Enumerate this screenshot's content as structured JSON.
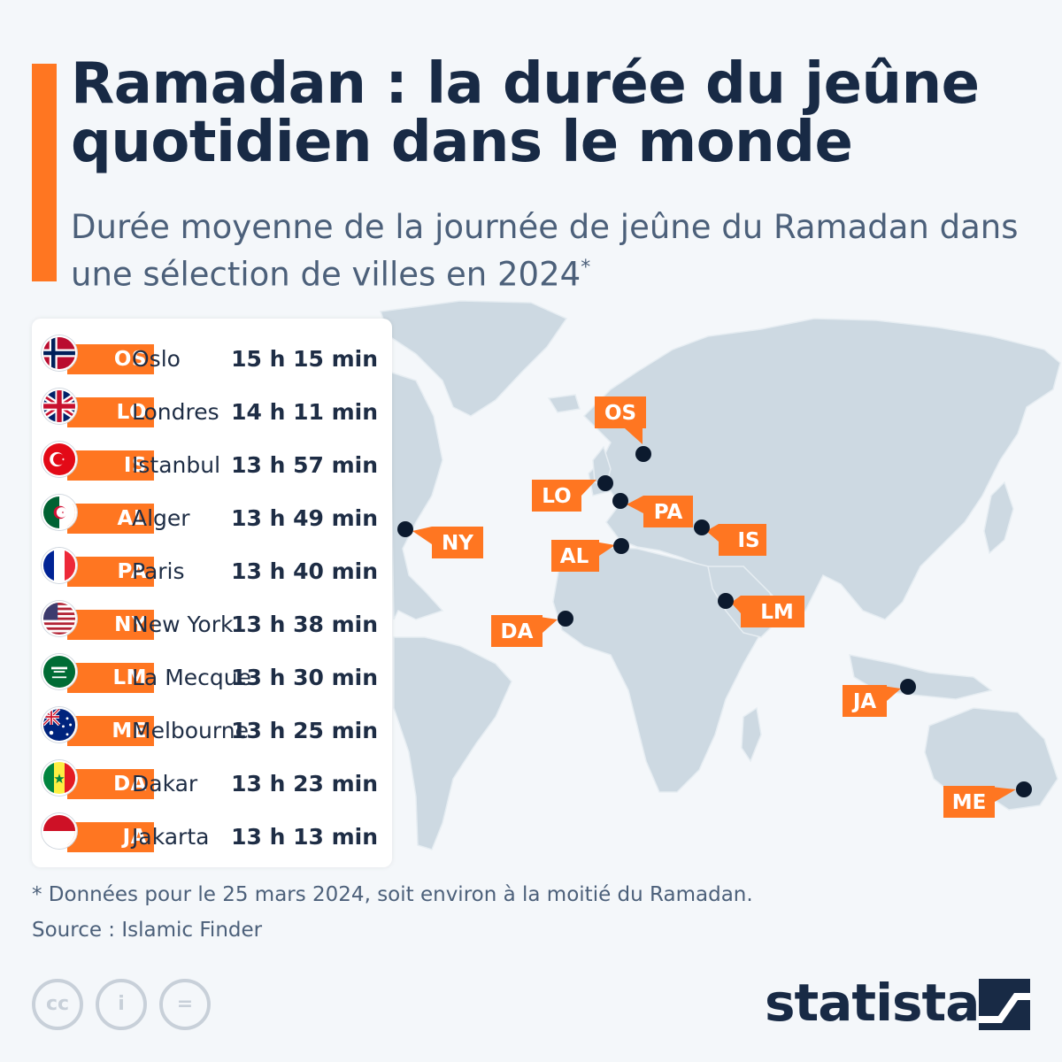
{
  "title": "Ramadan : la durée du jeûne quotidien dans le monde",
  "subtitle": "Durée moyenne de la journée de jeûne du Ramadan dans une sélection de villes en 2024",
  "subtitle_mark": "*",
  "colors": {
    "accent": "#ff7621",
    "title": "#182a45",
    "land": "#cdd9e2",
    "marker": "#0c1a2e",
    "background": "#f4f7fa"
  },
  "rows": [
    {
      "code": "OS",
      "city": "Oslo",
      "duration": "15 h 15 min",
      "flag": "norway-flag-icon"
    },
    {
      "code": "LO",
      "city": "Londres",
      "duration": "14 h 11 min",
      "flag": "uk-flag-icon"
    },
    {
      "code": "IS",
      "city": "Istanbul",
      "duration": "13 h 57 min",
      "flag": "turkey-flag-icon"
    },
    {
      "code": "AL",
      "city": "Alger",
      "duration": "13 h 49 min",
      "flag": "algeria-flag-icon"
    },
    {
      "code": "PA",
      "city": "Paris",
      "duration": "13 h 40 min",
      "flag": "france-flag-icon"
    },
    {
      "code": "NY",
      "city": "New York",
      "duration": "13 h 38 min",
      "flag": "usa-flag-icon"
    },
    {
      "code": "LM",
      "city": "La Mecque",
      "duration": "13 h 30 min",
      "flag": "saudi-flag-icon"
    },
    {
      "code": "ME",
      "city": "Melbourne",
      "duration": "13 h 25 min",
      "flag": "australia-flag-icon"
    },
    {
      "code": "DA",
      "city": "Dakar",
      "duration": "13 h 23 min",
      "flag": "senegal-flag-icon"
    },
    {
      "code": "JA",
      "city": "Jakarta",
      "duration": "13 h 13 min",
      "flag": "indonesia-flag-icon"
    }
  ],
  "map_labels": {
    "os": "OS",
    "lo": "LO",
    "pa": "PA",
    "is": "IS",
    "ny": "NY",
    "al": "AL",
    "lm": "LM",
    "da": "DA",
    "ja": "JA",
    "me": "ME"
  },
  "footnote": "* Données pour le 25 mars 2024, soit environ à la moitié du Ramadan.",
  "source": "Source : Islamic Finder",
  "license_icons": [
    "cc-icon",
    "attribution-icon",
    "no-derivatives-icon"
  ],
  "license_text": {
    "cc": "cc",
    "by": "i",
    "nd": "="
  },
  "brand": "statista"
}
